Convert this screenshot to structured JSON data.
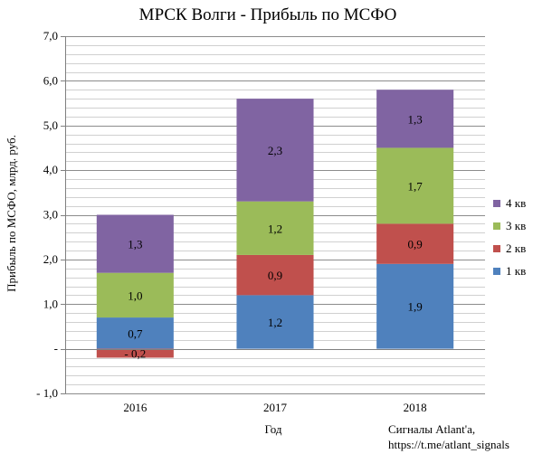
{
  "chart_data": {
    "type": "bar",
    "stacked": true,
    "title": "МРСК Волги - Прибыль по МСФО",
    "xlabel": "Год",
    "ylabel": "Прибыль по МСФО, млрд. руб.",
    "ylim": [
      -1.0,
      7.0
    ],
    "yticks": [
      {
        "value": -1.0,
        "label": "- 1,0"
      },
      {
        "value": 0.0,
        "label": "-"
      },
      {
        "value": 1.0,
        "label": "1,0"
      },
      {
        "value": 2.0,
        "label": "2,0"
      },
      {
        "value": 3.0,
        "label": "3,0"
      },
      {
        "value": 4.0,
        "label": "4,0"
      },
      {
        "value": 5.0,
        "label": "5,0"
      },
      {
        "value": 6.0,
        "label": "6,0"
      },
      {
        "value": 7.0,
        "label": "7,0"
      }
    ],
    "minor_grid_step": 0.2,
    "grid": true,
    "legend_position": "right",
    "categories": [
      "2016",
      "2017",
      "2018"
    ],
    "series": [
      {
        "name": "1 кв",
        "color": "#4f81bd",
        "values": [
          0.7,
          1.2,
          1.9
        ],
        "labels": [
          "0,7",
          "1,2",
          "1,9"
        ]
      },
      {
        "name": "2 кв",
        "color": "#c0504d",
        "values": [
          -0.2,
          0.9,
          0.9
        ],
        "labels": [
          "- 0,2",
          "0,9",
          "0,9"
        ]
      },
      {
        "name": "3 кв",
        "color": "#9bbb59",
        "values": [
          1.0,
          1.2,
          1.7
        ],
        "labels": [
          "1,0",
          "1,2",
          "1,7"
        ]
      },
      {
        "name": "4 кв",
        "color": "#8064a2",
        "values": [
          1.3,
          2.3,
          1.3
        ],
        "labels": [
          "1,3",
          "2,3",
          "1,3"
        ]
      }
    ]
  },
  "footer": {
    "source_line1": "Сигналы Atlant'a,",
    "source_line2": "https://t.me/atlant_signals"
  }
}
